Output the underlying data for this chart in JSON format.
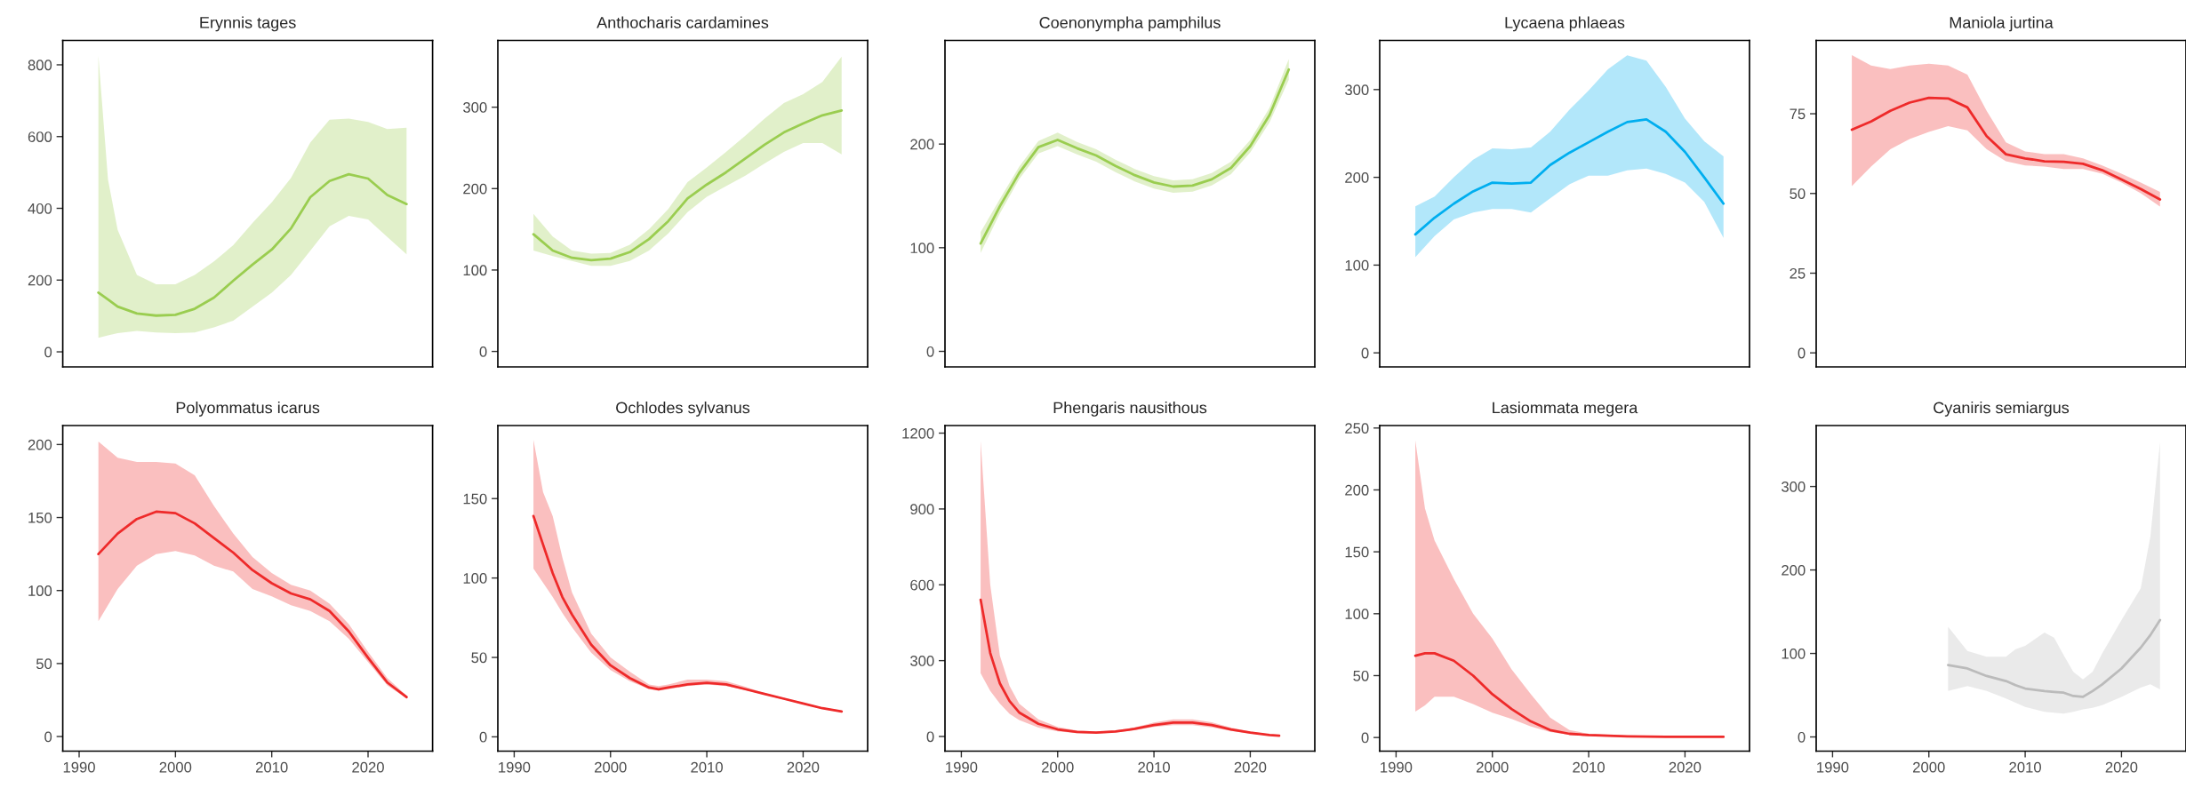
{
  "chart_data": [
    {
      "type": "line",
      "title": "Erynnis tages",
      "x": [
        1992,
        1993,
        1994,
        1996,
        1998,
        2000,
        2002,
        2004,
        2006,
        2008,
        2010,
        2012,
        2014,
        2016,
        2018,
        2020,
        2022,
        2024
      ],
      "xlim": [
        1988.3,
        2026.7
      ],
      "ylim": [
        -42,
        868
      ],
      "yticks": [
        0,
        200,
        400,
        600,
        800
      ],
      "tick_labels": "y",
      "grid": false,
      "series": [
        {
          "color": "#9acd50",
          "values": [
            165,
            146,
            126,
            107,
            101,
            103,
            120,
            151,
            198,
            243,
            285,
            344,
            431,
            476,
            495,
            483,
            437,
            412
          ],
          "lower": [
            39,
            46,
            52,
            58,
            54,
            52,
            54,
            68,
            87,
            126,
            165,
            214,
            282,
            350,
            379,
            369,
            320,
            272
          ],
          "upper": [
            825,
            480,
            340,
            214,
            188,
            188,
            214,
            252,
            297,
            359,
            417,
            485,
            583,
            647,
            650,
            641,
            621,
            625
          ]
        }
      ]
    },
    {
      "type": "line",
      "title": "Anthocharis cardamines",
      "x": [
        1992,
        1994,
        1996,
        1998,
        2000,
        2002,
        2004,
        2006,
        2008,
        2010,
        2012,
        2014,
        2016,
        2018,
        2020,
        2022,
        2024
      ],
      "xlim": [
        1988.3,
        2026.7
      ],
      "ylim": [
        -19,
        382
      ],
      "yticks": [
        0,
        100,
        200,
        300
      ],
      "tick_labels": "y",
      "grid": false,
      "series": [
        {
          "color": "#9acd50",
          "values": [
            144,
            124,
            115,
            112,
            114,
            122,
            138,
            160,
            188,
            205,
            220,
            237,
            254,
            269,
            280,
            290,
            296
          ],
          "lower": [
            124,
            117,
            111,
            105,
            105,
            111,
            124,
            145,
            171,
            190,
            203,
            216,
            231,
            245,
            256,
            256,
            242
          ],
          "upper": [
            169,
            141,
            124,
            120,
            121,
            131,
            150,
            175,
            208,
            226,
            245,
            265,
            286,
            305,
            316,
            331,
            362
          ]
        }
      ]
    },
    {
      "type": "line",
      "title": "Coenonympha pamphilus",
      "x": [
        1992,
        1994,
        1996,
        1998,
        2000,
        2002,
        2004,
        2006,
        2008,
        2010,
        2012,
        2014,
        2016,
        2018,
        2020,
        2022,
        2024
      ],
      "xlim": [
        1988.3,
        2026.7
      ],
      "ylim": [
        -15,
        300
      ],
      "yticks": [
        0,
        100,
        200
      ],
      "tick_labels": "y",
      "grid": false,
      "series": [
        {
          "color": "#9acd50",
          "values": [
            104,
            140,
            172,
            197,
            204,
            196,
            189,
            179,
            170,
            163,
            159,
            160,
            166,
            177,
            198,
            228,
            272
          ],
          "lower": [
            95,
            133,
            166,
            191,
            198,
            190,
            183,
            173,
            164,
            157,
            153,
            154,
            160,
            171,
            192,
            221,
            262
          ],
          "upper": [
            115,
            147,
            178,
            203,
            211,
            202,
            195,
            185,
            176,
            169,
            165,
            166,
            172,
            183,
            204,
            235,
            282
          ]
        }
      ]
    },
    {
      "type": "line",
      "title": "Lycaena phlaeas",
      "x": [
        1992,
        1994,
        1996,
        1998,
        2000,
        2002,
        2004,
        2006,
        2008,
        2010,
        2012,
        2014,
        2016,
        2018,
        2020,
        2022,
        2024
      ],
      "xlim": [
        1988.3,
        2026.7
      ],
      "ylim": [
        -16,
        356
      ],
      "yticks": [
        0,
        100,
        200,
        300
      ],
      "tick_labels": "y",
      "grid": false,
      "series": [
        {
          "color": "#00aeef",
          "values": [
            135,
            154,
            170,
            184,
            194,
            193,
            194,
            214,
            228,
            240,
            252,
            263,
            266,
            252,
            229,
            200,
            170
          ],
          "lower": [
            109,
            133,
            152,
            160,
            164,
            164,
            160,
            176,
            192,
            202,
            202,
            208,
            210,
            204,
            194,
            172,
            131
          ],
          "upper": [
            167,
            178,
            200,
            220,
            233,
            232,
            234,
            252,
            277,
            299,
            323,
            339,
            333,
            303,
            267,
            241,
            224
          ]
        }
      ]
    },
    {
      "type": "line",
      "title": "Maniola jurtina",
      "x": [
        1992,
        1994,
        1996,
        1998,
        2000,
        2002,
        2004,
        2006,
        2008,
        2010,
        2012,
        2014,
        2016,
        2018,
        2020,
        2022,
        2024
      ],
      "xlim": [
        1988.3,
        2026.7
      ],
      "ylim": [
        -4.4,
        98
      ],
      "yticks": [
        0,
        25,
        50,
        75
      ],
      "tick_labels": "y",
      "grid": false,
      "series": [
        {
          "color": "#ee2a2a",
          "values": [
            70,
            72.6,
            75.9,
            78.5,
            80,
            79.8,
            77,
            68,
            62.3,
            61,
            60.1,
            59.9,
            59.3,
            57.3,
            54.4,
            51.4,
            48.1
          ],
          "lower": [
            52.3,
            58.4,
            63.9,
            67.1,
            69.3,
            71.1,
            69.8,
            63.9,
            60.1,
            58.8,
            58.4,
            57.7,
            57.7,
            56.2,
            53.4,
            50.1,
            45.9
          ],
          "upper": [
            93.4,
            90.1,
            89,
            90.1,
            90.7,
            90.1,
            87.3,
            75.9,
            66,
            63.2,
            62.3,
            62.3,
            61,
            58.8,
            56.2,
            53.4,
            50.5
          ]
        }
      ]
    },
    {
      "type": "line",
      "title": "Polyommatus icarus",
      "x": [
        1992,
        1994,
        1996,
        1998,
        2000,
        2002,
        2004,
        2006,
        2008,
        2010,
        2012,
        2014,
        2016,
        2018,
        2020,
        2022,
        2024
      ],
      "xlim": [
        1988.3,
        2026.7
      ],
      "xticks": [
        1990,
        2000,
        2010,
        2020
      ],
      "ylim": [
        -10,
        213
      ],
      "yticks": [
        0,
        50,
        100,
        150,
        200
      ],
      "grid": false,
      "series": [
        {
          "color": "#ee2a2a",
          "values": [
            125,
            139,
            149,
            154,
            153,
            146,
            136,
            126,
            114,
            105,
            98,
            94,
            86,
            72,
            54,
            37,
            27
          ],
          "lower": [
            79,
            101,
            117,
            125,
            127,
            124,
            117,
            113,
            101,
            96,
            90,
            86,
            79,
            67,
            51,
            35,
            26
          ],
          "upper": [
            202,
            191,
            188,
            188,
            187,
            179,
            158,
            139,
            123,
            112,
            104,
            100,
            91,
            77,
            58,
            40,
            28
          ]
        }
      ]
    },
    {
      "type": "line",
      "title": "Ochlodes sylvanus",
      "x": [
        1992,
        1993,
        1994,
        1995,
        1996,
        1998,
        2000,
        2002,
        2004,
        2005,
        2006,
        2008,
        2010,
        2012,
        2014,
        2016,
        2018,
        2020,
        2022,
        2024
      ],
      "xlim": [
        1988.3,
        2026.7
      ],
      "xticks": [
        1990,
        2000,
        2010,
        2020
      ],
      "ylim": [
        -9,
        196
      ],
      "yticks": [
        0,
        50,
        100,
        150
      ],
      "grid": false,
      "series": [
        {
          "color": "#ee2a2a",
          "values": [
            139,
            121,
            103,
            88,
            77,
            58,
            45,
            37,
            31,
            30,
            31,
            33,
            34,
            33,
            30,
            27,
            24,
            21,
            18,
            16
          ],
          "lower": [
            106,
            97,
            88,
            78,
            69,
            53,
            42,
            35,
            30,
            29,
            30,
            32,
            33,
            32,
            29.5,
            26.5,
            23.5,
            20.5,
            17.5,
            15.5
          ],
          "upper": [
            187,
            154,
            139,
            113,
            91,
            65,
            50,
            41,
            33,
            32,
            33,
            36,
            36,
            35,
            31.5,
            27.5,
            24.5,
            21.5,
            18.5,
            16.5
          ]
        }
      ]
    },
    {
      "type": "line",
      "title": "Phengaris nausithous",
      "x": [
        1992,
        1993,
        1994,
        1995,
        1996,
        1998,
        2000,
        2002,
        2004,
        2006,
        2008,
        2010,
        2012,
        2014,
        2016,
        2018,
        2020,
        2022,
        2023
      ],
      "xlim": [
        1988.3,
        2026.7
      ],
      "xticks": [
        1990,
        2000,
        2010,
        2020
      ],
      "ylim": [
        -58,
        1230
      ],
      "yticks": [
        0,
        300,
        600,
        900,
        1200
      ],
      "grid": false,
      "series": [
        {
          "color": "#ee2a2a",
          "values": [
            541,
            330,
            210,
            140,
            95,
            50,
            28,
            18,
            15,
            20,
            30,
            45,
            55,
            55,
            45,
            28,
            15,
            6,
            3
          ],
          "lower": [
            250,
            180,
            130,
            90,
            65,
            35,
            20,
            13,
            11,
            16,
            25,
            38,
            45,
            45,
            36,
            22,
            11,
            4,
            2
          ],
          "upper": [
            1170,
            600,
            320,
            200,
            130,
            68,
            38,
            24,
            19,
            24,
            36,
            55,
            68,
            68,
            56,
            35,
            19,
            9,
            6
          ]
        }
      ]
    },
    {
      "type": "line",
      "title": "Lasiommata megera",
      "x": [
        1992,
        1993,
        1994,
        1996,
        1998,
        2000,
        2002,
        2004,
        2006,
        2008,
        2010,
        2014,
        2018,
        2024
      ],
      "xlim": [
        1988.3,
        2026.7
      ],
      "xticks": [
        1990,
        2000,
        2010,
        2020
      ],
      "ylim": [
        -11,
        252
      ],
      "yticks": [
        0,
        50,
        100,
        150,
        200,
        250
      ],
      "grid": false,
      "series": [
        {
          "color": "#ee2a2a",
          "values": [
            66,
            68,
            68,
            62,
            50,
            35,
            23,
            13,
            6,
            3,
            2,
            1,
            0.6,
            0.5
          ],
          "lower": [
            21,
            26,
            33,
            33,
            27,
            20,
            15,
            9,
            4.5,
            2.3,
            1,
            0.5,
            0.3,
            0.2
          ],
          "upper": [
            240,
            185,
            159,
            128,
            100,
            80,
            55,
            35,
            16,
            6,
            3,
            1.5,
            1,
            0.8
          ]
        }
      ]
    },
    {
      "type": "line",
      "title": "Cyaniris semiargus",
      "x": [
        2002,
        2004,
        2006,
        2008,
        2009,
        2010,
        2012,
        2013,
        2014,
        2015,
        2016,
        2017,
        2018,
        2020,
        2022,
        2023,
        2024
      ],
      "xlim": [
        1988.3,
        2026.7
      ],
      "xticks": [
        1990,
        2000,
        2010,
        2020
      ],
      "ylim": [
        -17,
        373
      ],
      "yticks": [
        0,
        100,
        200,
        300
      ],
      "grid": false,
      "series": [
        {
          "color": "#bbbbbb",
          "values": [
            86,
            82,
            73,
            67,
            62,
            58,
            55,
            54,
            53,
            49,
            48,
            55,
            63,
            82,
            107,
            122,
            140
          ],
          "lower": [
            55,
            61,
            55,
            46,
            41,
            36,
            30,
            29,
            28,
            30,
            33,
            35,
            38,
            48,
            59,
            63,
            57
          ],
          "upper": [
            132,
            103,
            96,
            96,
            105,
            109,
            125,
            119,
            98,
            78,
            69,
            78,
            100,
            140,
            178,
            240,
            353
          ]
        }
      ]
    }
  ]
}
